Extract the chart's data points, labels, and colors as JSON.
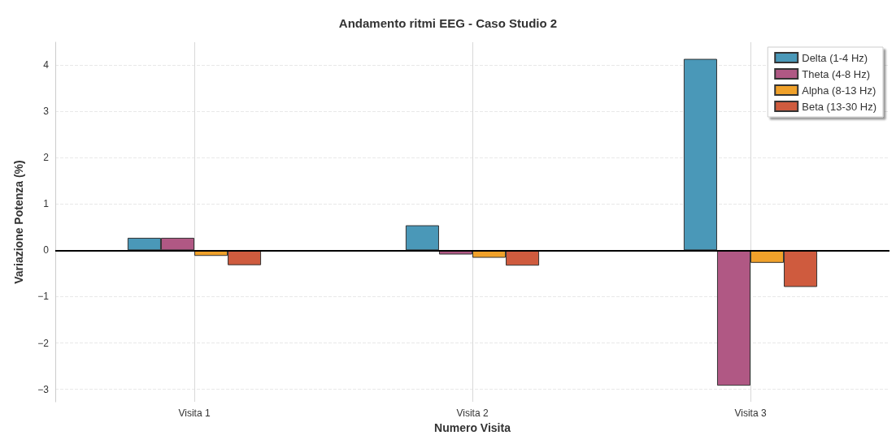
{
  "chart_data": {
    "type": "bar",
    "title": "Andamento ritmi EEG - Caso Studio 2",
    "xlabel": "Numero Visita",
    "ylabel": "Variazione Potenza (%)",
    "categories": [
      "Visita 1",
      "Visita 2",
      "Visita 3"
    ],
    "series": [
      {
        "name": "Delta (1-4 Hz)",
        "color": "#4a98b8",
        "values": [
          0.27,
          0.54,
          4.13
        ]
      },
      {
        "name": "Theta (4-8 Hz)",
        "color": "#b05884",
        "values": [
          0.27,
          -0.09,
          -2.92
        ]
      },
      {
        "name": "Alpha (8-13 Hz)",
        "color": "#f0a12a",
        "values": [
          -0.12,
          -0.16,
          -0.27
        ]
      },
      {
        "name": "Beta (13-30 Hz)",
        "color": "#cf5b3e",
        "values": [
          -0.32,
          -0.33,
          -0.79
        ]
      }
    ],
    "ylim": [
      -3.27,
      4.49
    ],
    "yticks": [
      -3,
      -2,
      -1,
      0,
      1,
      2,
      3,
      4
    ],
    "ref_lines": [
      {
        "axis": "y",
        "value": 0,
        "color": "#000000"
      }
    ],
    "grid": true,
    "legend": "top right"
  }
}
